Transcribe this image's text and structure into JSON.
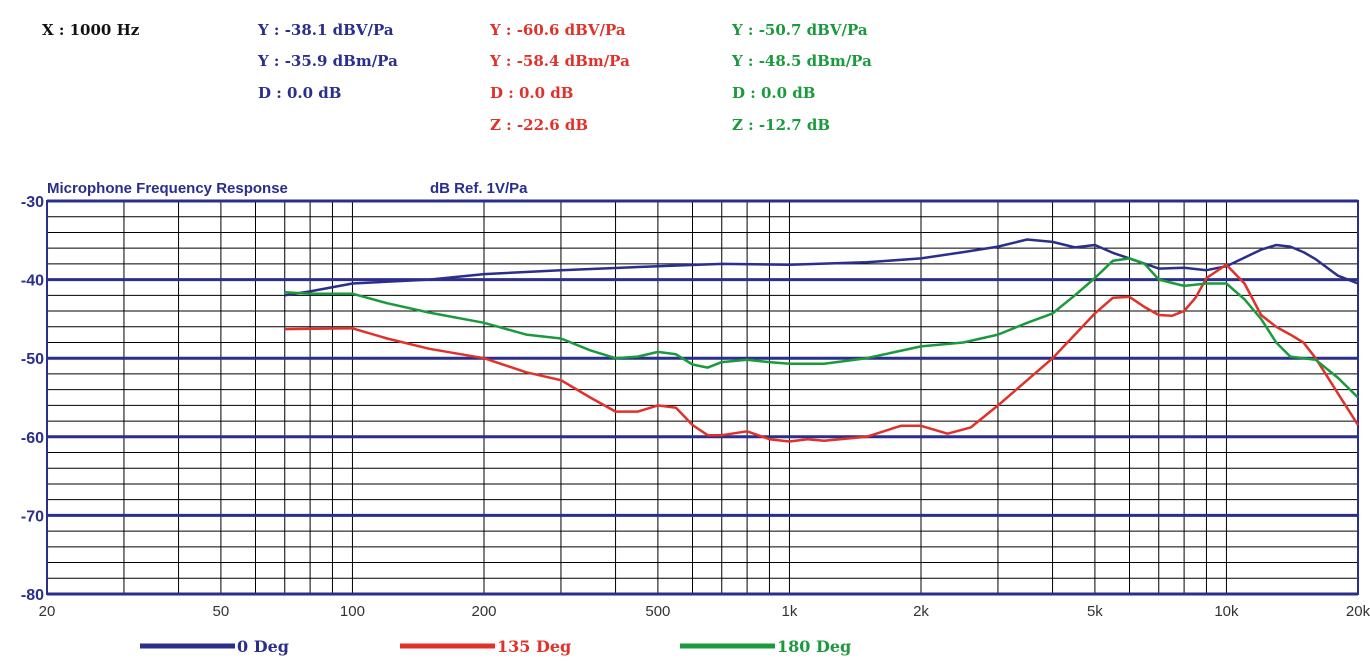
{
  "readouts": {
    "x": "X : 1000 Hz",
    "col_blue": [
      "Y : -38.1 dBV/Pa",
      "Y : -35.9 dBm/Pa",
      "D : 0.0 dB"
    ],
    "col_red": [
      "Y : -60.6 dBV/Pa",
      "Y : -58.4 dBm/Pa",
      "D : 0.0 dB",
      "Z : -22.6 dB"
    ],
    "col_green": [
      "Y : -50.7 dBV/Pa",
      "Y : -48.5 dBm/Pa",
      "D : 0.0 dB",
      "Z : -12.7 dB"
    ]
  },
  "colors": {
    "blue": "#2a2e8c",
    "red": "#e0312b",
    "green": "#1a9a3c",
    "grid": "#000000",
    "major_grid": "#2a2e8c"
  },
  "chart_data": {
    "type": "line",
    "title": "Microphone Frequency Response",
    "ylabel": "dB Ref. 1V/Pa",
    "xscale": "log",
    "xlim": [
      20,
      20000
    ],
    "ylim": [
      -80,
      -30
    ],
    "x_tick_labels": [
      {
        "value": 20,
        "label": "20"
      },
      {
        "value": 50,
        "label": "50"
      },
      {
        "value": 100,
        "label": "100"
      },
      {
        "value": 200,
        "label": "200"
      },
      {
        "value": 500,
        "label": "500"
      },
      {
        "value": 1000,
        "label": "1k"
      },
      {
        "value": 2000,
        "label": "2k"
      },
      {
        "value": 5000,
        "label": "5k"
      },
      {
        "value": 10000,
        "label": "10k"
      },
      {
        "value": 20000,
        "label": "20k"
      }
    ],
    "y_tick_labels": [
      {
        "value": -30,
        "label": "-30"
      },
      {
        "value": -40,
        "label": "-40"
      },
      {
        "value": -50,
        "label": "-50"
      },
      {
        "value": -60,
        "label": "-60"
      },
      {
        "value": -70,
        "label": "-70"
      },
      {
        "value": -80,
        "label": "-80"
      }
    ],
    "grid": true,
    "legend_position": "bottom",
    "series": [
      {
        "name": "0 Deg",
        "color": "#2a2e8c",
        "points": [
          [
            70,
            -42
          ],
          [
            80,
            -41.5
          ],
          [
            100,
            -40.5
          ],
          [
            150,
            -40
          ],
          [
            200,
            -39.3
          ],
          [
            300,
            -38.8
          ],
          [
            500,
            -38.3
          ],
          [
            700,
            -38
          ],
          [
            1000,
            -38.1
          ],
          [
            1500,
            -37.8
          ],
          [
            2000,
            -37.3
          ],
          [
            2500,
            -36.5
          ],
          [
            3000,
            -35.8
          ],
          [
            3500,
            -34.9
          ],
          [
            4000,
            -35.2
          ],
          [
            4500,
            -35.9
          ],
          [
            5000,
            -35.6
          ],
          [
            5500,
            -36.6
          ],
          [
            6000,
            -37.3
          ],
          [
            7000,
            -38.6
          ],
          [
            8000,
            -38.5
          ],
          [
            9000,
            -38.8
          ],
          [
            10000,
            -38.3
          ],
          [
            11000,
            -37.2
          ],
          [
            12000,
            -36.2
          ],
          [
            13000,
            -35.6
          ],
          [
            14000,
            -35.8
          ],
          [
            15000,
            -36.5
          ],
          [
            16000,
            -37.4
          ],
          [
            18000,
            -39.5
          ],
          [
            20000,
            -40.5
          ]
        ]
      },
      {
        "name": "135 Deg",
        "color": "#e0312b",
        "points": [
          [
            70,
            -46.3
          ],
          [
            100,
            -46.2
          ],
          [
            120,
            -47.5
          ],
          [
            150,
            -48.8
          ],
          [
            200,
            -50
          ],
          [
            250,
            -51.8
          ],
          [
            300,
            -52.8
          ],
          [
            350,
            -55
          ],
          [
            400,
            -56.8
          ],
          [
            450,
            -56.8
          ],
          [
            500,
            -56
          ],
          [
            550,
            -56.3
          ],
          [
            600,
            -58.5
          ],
          [
            650,
            -59.8
          ],
          [
            700,
            -59.8
          ],
          [
            800,
            -59.3
          ],
          [
            900,
            -60.3
          ],
          [
            1000,
            -60.6
          ],
          [
            1100,
            -60.3
          ],
          [
            1200,
            -60.5
          ],
          [
            1500,
            -60
          ],
          [
            1800,
            -58.6
          ],
          [
            2000,
            -58.6
          ],
          [
            2300,
            -59.6
          ],
          [
            2600,
            -58.8
          ],
          [
            3000,
            -56
          ],
          [
            3500,
            -52.8
          ],
          [
            4000,
            -50
          ],
          [
            4500,
            -47
          ],
          [
            5000,
            -44.3
          ],
          [
            5500,
            -42.3
          ],
          [
            6000,
            -42.2
          ],
          [
            6500,
            -43.5
          ],
          [
            7000,
            -44.5
          ],
          [
            7500,
            -44.6
          ],
          [
            8000,
            -44
          ],
          [
            8500,
            -42.3
          ],
          [
            9000,
            -39.8
          ],
          [
            10000,
            -38.1
          ],
          [
            11000,
            -40.5
          ],
          [
            12000,
            -44.5
          ],
          [
            13000,
            -46
          ],
          [
            14000,
            -47
          ],
          [
            15000,
            -48
          ],
          [
            16000,
            -50
          ],
          [
            18000,
            -54.5
          ],
          [
            20000,
            -58.5
          ]
        ]
      },
      {
        "name": "180 Deg",
        "color": "#1a9a3c",
        "points": [
          [
            70,
            -41.6
          ],
          [
            80,
            -41.8
          ],
          [
            100,
            -41.8
          ],
          [
            120,
            -43
          ],
          [
            150,
            -44.2
          ],
          [
            200,
            -45.5
          ],
          [
            250,
            -47
          ],
          [
            300,
            -47.5
          ],
          [
            350,
            -49
          ],
          [
            400,
            -50
          ],
          [
            450,
            -49.8
          ],
          [
            500,
            -49.2
          ],
          [
            550,
            -49.5
          ],
          [
            600,
            -50.8
          ],
          [
            650,
            -51.2
          ],
          [
            700,
            -50.5
          ],
          [
            800,
            -50.2
          ],
          [
            900,
            -50.5
          ],
          [
            1000,
            -50.7
          ],
          [
            1200,
            -50.7
          ],
          [
            1500,
            -50
          ],
          [
            2000,
            -48.5
          ],
          [
            2500,
            -48
          ],
          [
            3000,
            -47
          ],
          [
            3500,
            -45.5
          ],
          [
            4000,
            -44.3
          ],
          [
            4500,
            -42
          ],
          [
            5000,
            -39.8
          ],
          [
            5500,
            -37.6
          ],
          [
            6000,
            -37.3
          ],
          [
            6500,
            -38
          ],
          [
            7000,
            -40
          ],
          [
            8000,
            -40.8
          ],
          [
            9000,
            -40.5
          ],
          [
            10000,
            -40.5
          ],
          [
            11000,
            -42.5
          ],
          [
            12000,
            -45
          ],
          [
            13000,
            -48
          ],
          [
            14000,
            -49.8
          ],
          [
            15000,
            -50
          ],
          [
            16000,
            -50.2
          ],
          [
            18000,
            -52.5
          ],
          [
            20000,
            -55
          ]
        ]
      }
    ]
  }
}
